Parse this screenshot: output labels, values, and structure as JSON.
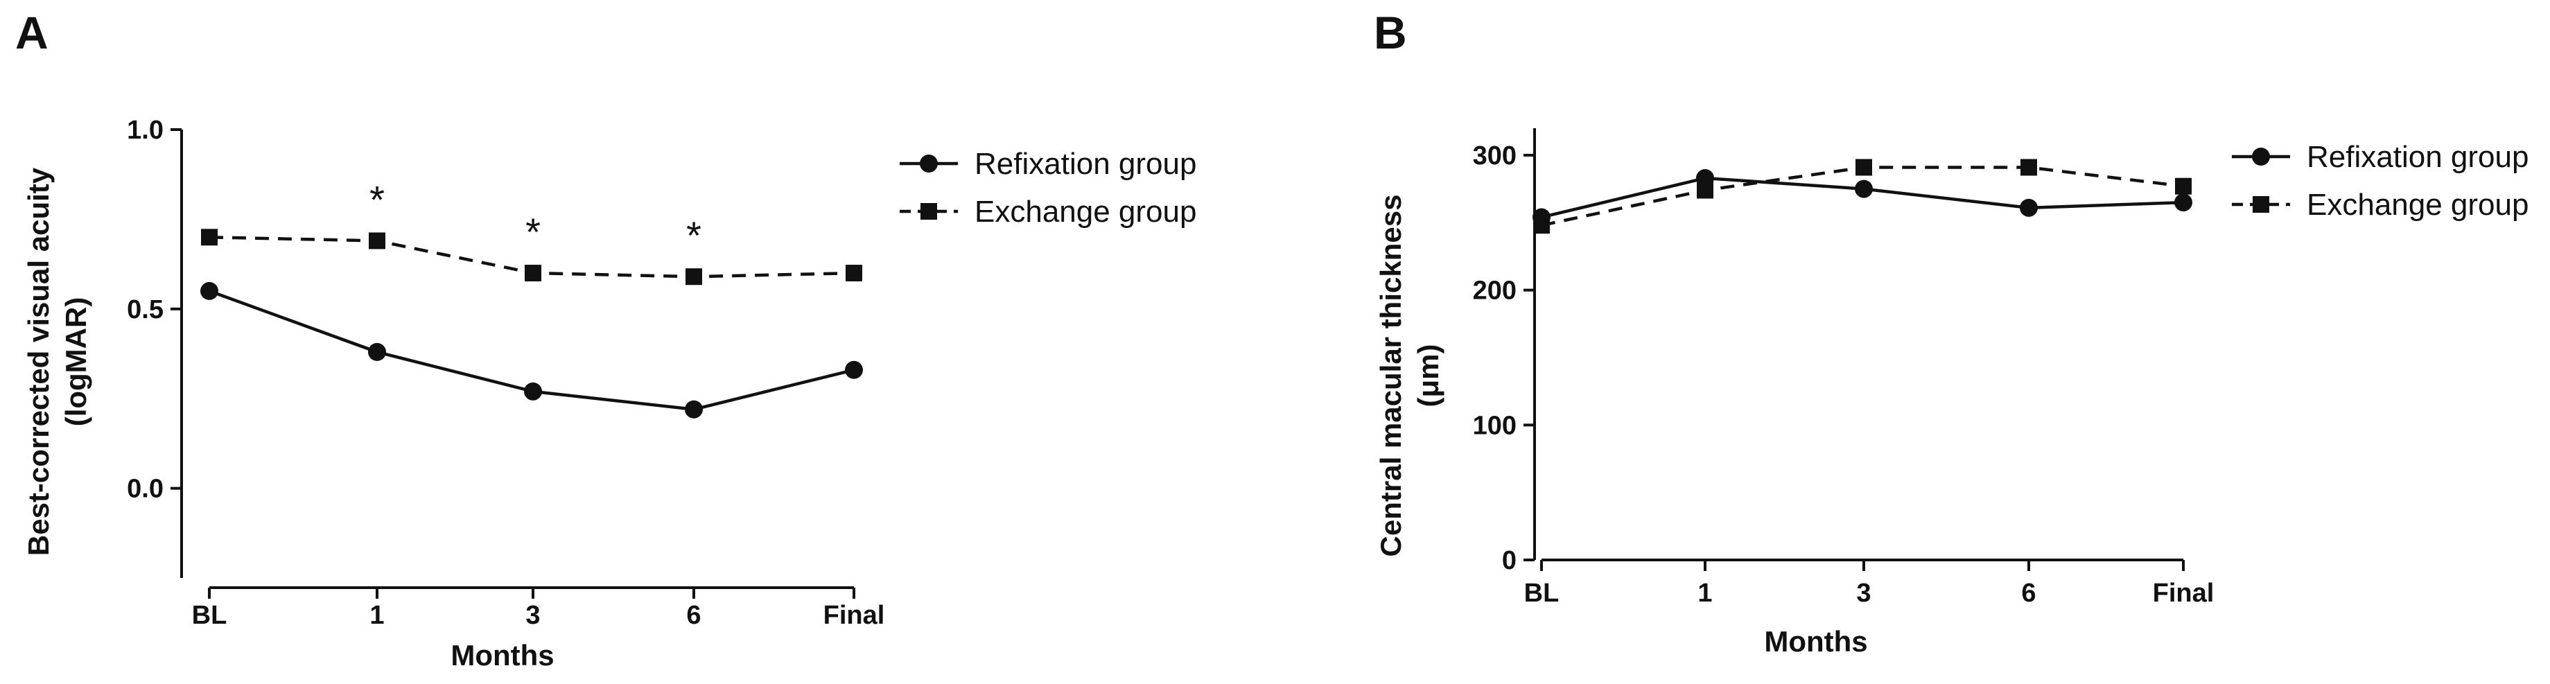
{
  "chart_data": [
    {
      "type": "line",
      "panel_label": "A",
      "categories": [
        "BL",
        "1",
        "3",
        "6",
        "Final"
      ],
      "xlabel": "Months",
      "ylabel": [
        "Best-corrected visual acuity",
        "(logMAR)"
      ],
      "ylim": [
        -0.25,
        1.0
      ],
      "yticks": [
        "0.0",
        "0.5",
        "1.0"
      ],
      "ytick_values": [
        0.0,
        0.5,
        1.0
      ],
      "grid": false,
      "legend_position": "top-right",
      "series": [
        {
          "name": "Refixation group",
          "marker": "circle",
          "line_style": "solid",
          "values": [
            0.55,
            0.38,
            0.27,
            0.22,
            0.33
          ]
        },
        {
          "name": "Exchange group",
          "marker": "square",
          "line_style": "dashed",
          "values": [
            0.7,
            0.69,
            0.6,
            0.59,
            0.6
          ]
        }
      ],
      "annotations": [
        {
          "text": "*",
          "category": "1"
        },
        {
          "text": "*",
          "category": "3"
        },
        {
          "text": "*",
          "category": "6"
        }
      ]
    },
    {
      "type": "line",
      "panel_label": "B",
      "categories": [
        "BL",
        "1",
        "3",
        "6",
        "Final"
      ],
      "xlabel": "Months",
      "ylabel": [
        "Central macular thickness",
        "(μm)"
      ],
      "ylim": [
        0,
        320
      ],
      "yticks": [
        "0",
        "100",
        "200",
        "300"
      ],
      "ytick_values": [
        0,
        100,
        200,
        300
      ],
      "grid": false,
      "legend_position": "top-right",
      "series": [
        {
          "name": "Refixation group",
          "marker": "circle",
          "line_style": "solid",
          "values": [
            254,
            283,
            275,
            261,
            265
          ]
        },
        {
          "name": "Exchange group",
          "marker": "square",
          "line_style": "dashed",
          "values": [
            248,
            274,
            291,
            291,
            277
          ]
        }
      ],
      "annotations": []
    }
  ]
}
